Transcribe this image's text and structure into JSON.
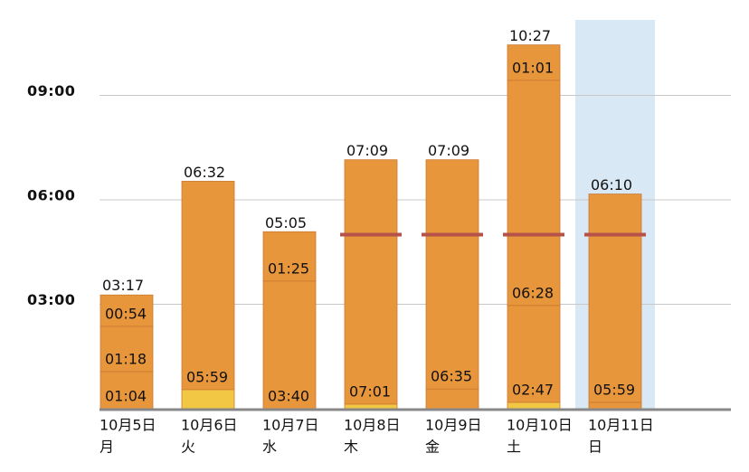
{
  "chart_data": {
    "type": "bar",
    "stacked": true,
    "categories": [
      "10月5日",
      "10月6日",
      "10月7日",
      "10月8日",
      "10月9日",
      "10月10日",
      "10月11日"
    ],
    "weekdays": [
      "月",
      "火",
      "水",
      "木",
      "金",
      "土",
      "日"
    ],
    "category_colors": [
      "#111111",
      "#111111",
      "#111111",
      "#111111",
      "#111111",
      "#c0392b",
      "#c0392b"
    ],
    "highlight_index": 6,
    "highlight_color": "#d9e8f5",
    "series": [
      {
        "color": "#f2c744",
        "colors": [
          "#f2c744",
          "#f2c744",
          "#f2c744",
          "#f2c744",
          "#e8963c",
          "#f2c744",
          "#e8963c"
        ],
        "values": [
          null,
          0.55,
          null,
          0.133,
          0.567,
          0.183,
          0.183
        ]
      },
      {
        "color": "#e8963c",
        "values": [
          1.067,
          5.983,
          3.667,
          7.017,
          6.583,
          2.783,
          5.983
        ],
        "value_labels": [
          "01:04",
          "05:59",
          "03:40",
          "07:01",
          "06:35",
          "02:47",
          "05:59"
        ]
      },
      {
        "color": "#e8963c",
        "values": [
          1.3,
          null,
          1.417,
          null,
          null,
          6.467,
          null
        ],
        "value_labels": [
          "01:18",
          null,
          "01:25",
          null,
          null,
          "06:28",
          null
        ]
      },
      {
        "color": "#e8963c",
        "values": [
          0.9,
          null,
          null,
          null,
          null,
          1.017,
          null
        ],
        "value_labels": [
          "00:54",
          null,
          null,
          null,
          null,
          "01:01",
          null
        ]
      }
    ],
    "totals": [
      3.283,
      6.533,
      5.083,
      7.15,
      7.15,
      10.45,
      6.167
    ],
    "total_labels": [
      "03:17",
      "06:32",
      "05:05",
      "07:09",
      "07:09",
      "10:27",
      "06:10"
    ],
    "target": [
      null,
      null,
      null,
      5,
      5,
      5,
      5
    ],
    "target_color": "#b5524a",
    "ylim": [
      0,
      11.7
    ],
    "yticks": [
      {
        "value": 3,
        "label": "03:00"
      },
      {
        "value": 6,
        "label": "06:00"
      },
      {
        "value": 9,
        "label": "09:00"
      }
    ],
    "grid": true
  }
}
